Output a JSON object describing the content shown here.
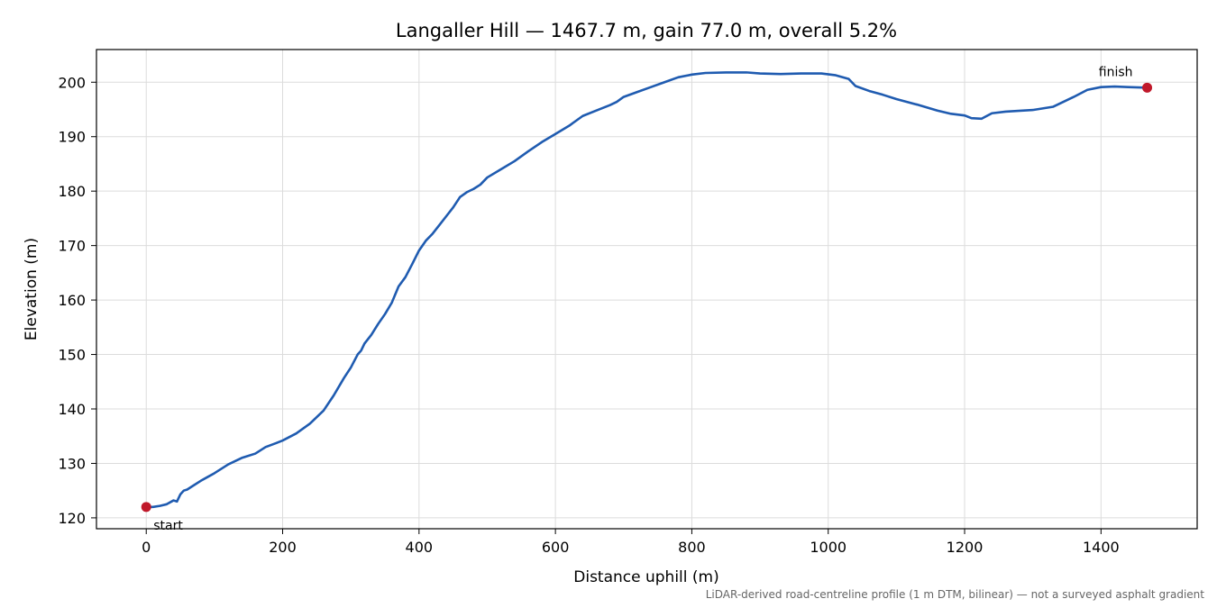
{
  "chart_data": {
    "type": "line",
    "title": "Langaller Hill — 1467.7 m, gain 77.0 m, overall 5.2%",
    "xlabel": "Distance uphill (m)",
    "ylabel": "Elevation (m)",
    "xlim": [
      -73,
      1541
    ],
    "ylim": [
      118,
      206
    ],
    "xticks": [
      0,
      200,
      400,
      600,
      800,
      1000,
      1200,
      1400
    ],
    "yticks": [
      120,
      130,
      140,
      150,
      160,
      170,
      180,
      190,
      200
    ],
    "grid": true,
    "line_color": "#1f5bb0",
    "marker_color": "#c0182a",
    "series": [
      {
        "x": [
          0,
          10,
          20,
          30,
          40,
          45,
          50,
          55,
          60,
          70,
          80,
          90,
          100,
          120,
          140,
          160,
          175,
          190,
          200,
          220,
          240,
          260,
          275,
          290,
          300,
          310,
          315,
          320,
          330,
          340,
          350,
          360,
          370,
          380,
          390,
          400,
          410,
          420,
          430,
          440,
          450,
          460,
          470,
          480,
          490,
          500,
          520,
          540,
          560,
          580,
          600,
          620,
          640,
          660,
          680,
          690,
          700,
          720,
          740,
          760,
          780,
          800,
          820,
          850,
          880,
          900,
          930,
          960,
          990,
          1010,
          1030,
          1040,
          1060,
          1080,
          1100,
          1130,
          1160,
          1180,
          1200,
          1210,
          1225,
          1240,
          1260,
          1300,
          1330,
          1360,
          1380,
          1400,
          1420,
          1440,
          1467.7
        ],
        "y": [
          122.0,
          122.0,
          122.2,
          122.5,
          123.2,
          123.0,
          124.3,
          125.0,
          125.2,
          126.0,
          126.8,
          127.5,
          128.2,
          129.8,
          131.0,
          131.8,
          133.0,
          133.7,
          134.2,
          135.5,
          137.3,
          139.7,
          142.5,
          145.7,
          147.6,
          150.0,
          150.7,
          152.0,
          153.6,
          155.6,
          157.4,
          159.5,
          162.5,
          164.2,
          166.6,
          169.1,
          170.9,
          172.2,
          173.8,
          175.4,
          177.0,
          178.9,
          179.8,
          180.4,
          181.2,
          182.5,
          184.0,
          185.5,
          187.3,
          189.0,
          190.5,
          192.0,
          193.8,
          194.8,
          195.8,
          196.4,
          197.3,
          198.2,
          199.1,
          200.0,
          200.9,
          201.4,
          201.7,
          201.8,
          201.8,
          201.6,
          201.5,
          201.6,
          201.6,
          201.3,
          200.6,
          199.3,
          198.4,
          197.7,
          196.9,
          195.9,
          194.8,
          194.2,
          193.9,
          193.4,
          193.3,
          194.3,
          194.6,
          194.9,
          195.5,
          197.3,
          198.6,
          199.1,
          199.2,
          199.1,
          199.0
        ]
      }
    ],
    "annotations": [
      {
        "label": "start",
        "x": 0,
        "y": 122.0
      },
      {
        "label": "finish",
        "x": 1467.7,
        "y": 199.0
      }
    ],
    "footnote": "LiDAR-derived road-centreline profile (1 m DTM, bilinear) — not a surveyed asphalt gradient"
  }
}
